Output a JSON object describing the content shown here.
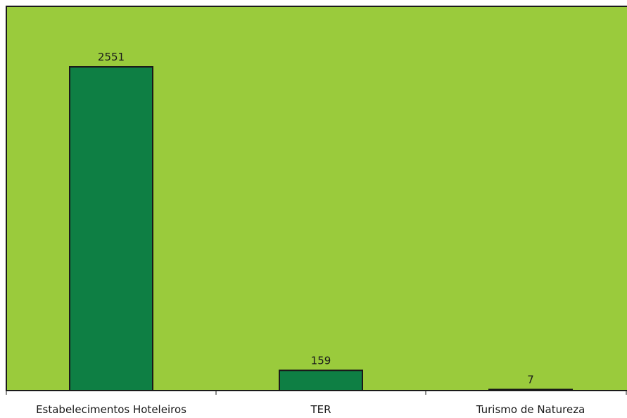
{
  "colors": {
    "plot_background": "#9acb3c",
    "bar_fill": "#0e7f44",
    "outline": "#1a1a1a"
  },
  "chart_data": {
    "type": "bar",
    "title": "",
    "xlabel": "",
    "ylabel": "",
    "categories": [
      "Estabelecimentos Hoteleiros",
      "TER",
      "Turismo de Natureza"
    ],
    "values": [
      2551,
      159,
      7
    ],
    "data_labels": [
      "2551",
      "159",
      "7"
    ],
    "ylim": [
      0,
      2950
    ],
    "grid": false,
    "legend": "none"
  }
}
